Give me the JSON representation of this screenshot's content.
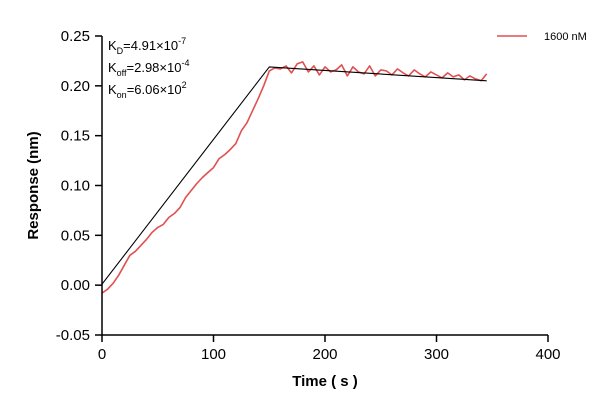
{
  "chart_data": {
    "type": "line",
    "xlabel": "Time ( s )",
    "ylabel": "Response (nm)",
    "xlim": [
      0,
      400
    ],
    "ylim": [
      -0.05,
      0.25
    ],
    "xticks": [
      0,
      100,
      200,
      300,
      400
    ],
    "yticks": [
      -0.05,
      0.0,
      0.05,
      0.1,
      0.15,
      0.2,
      0.25
    ],
    "ytick_labels": [
      "-0.05",
      "0.00",
      "0.05",
      "0.10",
      "0.15",
      "0.20",
      "0.25"
    ],
    "grid": false,
    "legend_position": "top-right",
    "kinetics": {
      "kd": {
        "base": "K",
        "sub": "D",
        "value": "=4.91×10",
        "exp": "-7"
      },
      "koff": {
        "base": "K",
        "sub": "off",
        "value": "=2.98×10",
        "exp": "-4"
      },
      "kon": {
        "base": "K",
        "sub": "on",
        "value": "=6.06×10",
        "exp": "2"
      }
    },
    "series": [
      {
        "name": "1600 nM",
        "color": "#e05050",
        "x": [
          0,
          5,
          10,
          15,
          20,
          25,
          30,
          35,
          40,
          45,
          50,
          55,
          60,
          65,
          70,
          75,
          80,
          85,
          90,
          95,
          100,
          105,
          110,
          115,
          120,
          125,
          130,
          135,
          140,
          145,
          150,
          155,
          160,
          165,
          170,
          175,
          180,
          185,
          190,
          195,
          200,
          205,
          210,
          215,
          220,
          225,
          230,
          235,
          240,
          245,
          250,
          255,
          260,
          265,
          270,
          275,
          280,
          285,
          290,
          295,
          300,
          305,
          310,
          315,
          320,
          325,
          330,
          335,
          340,
          345
        ],
        "y": [
          -0.008,
          -0.004,
          0.002,
          0.01,
          0.02,
          0.03,
          0.034,
          0.04,
          0.046,
          0.053,
          0.058,
          0.061,
          0.068,
          0.072,
          0.078,
          0.088,
          0.095,
          0.102,
          0.108,
          0.113,
          0.118,
          0.127,
          0.131,
          0.136,
          0.142,
          0.155,
          0.163,
          0.175,
          0.187,
          0.2,
          0.215,
          0.218,
          0.217,
          0.22,
          0.213,
          0.222,
          0.224,
          0.214,
          0.22,
          0.211,
          0.219,
          0.214,
          0.216,
          0.221,
          0.21,
          0.219,
          0.214,
          0.212,
          0.22,
          0.21,
          0.216,
          0.215,
          0.211,
          0.217,
          0.213,
          0.21,
          0.216,
          0.212,
          0.209,
          0.214,
          0.211,
          0.208,
          0.213,
          0.209,
          0.211,
          0.206,
          0.21,
          0.207,
          0.205,
          0.212
        ]
      },
      {
        "name": "",
        "color": "#000000",
        "x": [
          0,
          150,
          345
        ],
        "y": [
          0.001,
          0.219,
          0.205
        ]
      }
    ]
  }
}
